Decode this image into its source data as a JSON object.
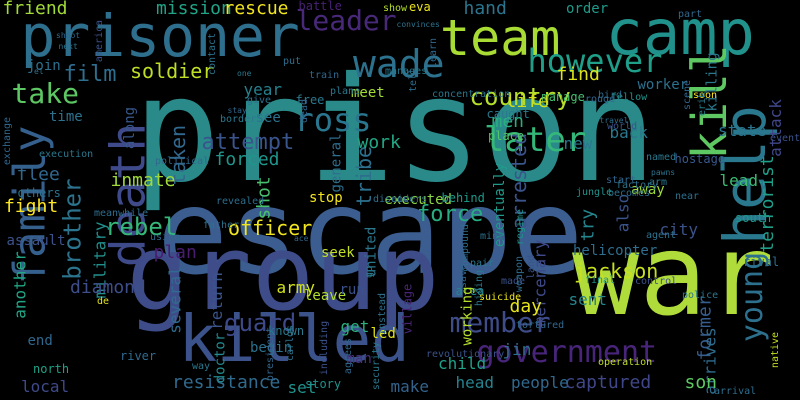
{
  "words": [
    {
      "t": "prison",
      "c": "#2a8a8a"
    },
    {
      "t": "escape",
      "c": "#3b5d8f"
    },
    {
      "t": "war",
      "c": "#b0dc3b"
    },
    {
      "t": "group",
      "c": "#3e4d8a"
    },
    {
      "t": "prisoner",
      "c": "#2e6f8e"
    },
    {
      "t": "camp",
      "c": "#21918c"
    },
    {
      "t": "team",
      "c": "#a8db34"
    },
    {
      "t": "death",
      "c": "#3e4a89"
    },
    {
      "t": "family",
      "c": "#35608d"
    },
    {
      "t": "killed",
      "c": "#3b528b"
    },
    {
      "t": "kill",
      "c": "#5ec962"
    },
    {
      "t": "help",
      "c": "#2a788e"
    },
    {
      "t": "government",
      "c": "#48257a"
    },
    {
      "t": "young",
      "c": "#2d708e"
    },
    {
      "t": "member",
      "c": "#3e4c8a"
    },
    {
      "t": "wade",
      "c": "#2c728e"
    },
    {
      "t": "later",
      "c": "#35b779"
    },
    {
      "t": "however",
      "c": "#1f9e89"
    },
    {
      "t": "leader",
      "c": "#482878"
    },
    {
      "t": "country",
      "c": "#b5de2b"
    },
    {
      "t": "ross",
      "c": "#2a768e"
    },
    {
      "t": "take",
      "c": "#5dc863"
    },
    {
      "t": "jackson",
      "c": "#c8e020"
    },
    {
      "t": "force",
      "c": "#27ad81"
    },
    {
      "t": "guard",
      "c": "#3e4989"
    },
    {
      "t": "brother",
      "c": "#2c738e"
    },
    {
      "t": "rebel",
      "c": "#35b779"
    },
    {
      "t": "attempt",
      "c": "#3a548c"
    },
    {
      "t": "taken",
      "c": "#31688e"
    },
    {
      "t": "film",
      "c": "#2e6e8e"
    },
    {
      "t": "soldier",
      "c": "#bddf26"
    },
    {
      "t": "inmate",
      "c": "#9fda3a"
    },
    {
      "t": "resistance",
      "c": "#306a8e"
    },
    {
      "t": "captured",
      "c": "#3f4788"
    },
    {
      "t": "mission",
      "c": "#20a386"
    },
    {
      "t": "rescue",
      "c": "#f1e51d"
    },
    {
      "t": "friend",
      "c": "#a2da37"
    },
    {
      "t": "hand",
      "c": "#2b758e"
    },
    {
      "t": "battle",
      "c": "#482173"
    },
    {
      "t": "officer",
      "c": "#f1e51d"
    },
    {
      "t": "army",
      "c": "#d2e21b"
    },
    {
      "t": "military",
      "c": "#21908d"
    },
    {
      "t": "tribe",
      "c": "#2d708e"
    },
    {
      "t": "arrested",
      "c": "#3a548c"
    },
    {
      "t": "forced",
      "c": "#1f968b"
    },
    {
      "t": "eventually",
      "c": "#1f9a8a"
    },
    {
      "t": "fight",
      "c": "#fde725"
    },
    {
      "t": "plan",
      "c": "#481d6f"
    },
    {
      "t": "diamond",
      "c": "#3d4e8a"
    },
    {
      "t": "work",
      "c": "#22a785"
    },
    {
      "t": "general",
      "c": "#2e6e8e"
    },
    {
      "t": "united",
      "c": "#2a778e"
    },
    {
      "t": "men",
      "c": "#29af7f"
    },
    {
      "t": "find",
      "c": "#dde318"
    },
    {
      "t": "life",
      "c": "#d0e11c"
    },
    {
      "t": "new",
      "c": "#29798e"
    },
    {
      "t": "state",
      "c": "#2b748e"
    },
    {
      "t": "lead",
      "c": "#3dbc74"
    },
    {
      "t": "mercenary",
      "c": "#3e4a89"
    },
    {
      "t": "try",
      "c": "#24868e"
    },
    {
      "t": "also",
      "c": "#3a538b"
    },
    {
      "t": "city",
      "c": "#3b528b"
    },
    {
      "t": "sent",
      "c": "#25848e"
    },
    {
      "t": "day",
      "c": "#e7e419"
    },
    {
      "t": "former",
      "c": "#365d8d"
    },
    {
      "t": "arrives",
      "c": "#2f6c8e"
    },
    {
      "t": "son",
      "c": "#5ec962"
    },
    {
      "t": "people",
      "c": "#31688e"
    },
    {
      "t": "terrorist",
      "c": "#1f9e89"
    },
    {
      "t": "attack",
      "c": "#3f4788"
    },
    {
      "t": "killing",
      "c": "#2a788e"
    },
    {
      "t": "worker",
      "c": "#2c728e"
    },
    {
      "t": "head",
      "c": "#26828e"
    },
    {
      "t": "child",
      "c": "#1fa088"
    },
    {
      "t": "make",
      "c": "#33638d"
    },
    {
      "t": "leave",
      "c": "#b0dd2f"
    },
    {
      "t": "local",
      "c": "#3e4a89"
    },
    {
      "t": "jin",
      "c": "#2e6e8e"
    },
    {
      "t": "set",
      "c": "#20928c"
    },
    {
      "t": "return",
      "c": "#3a548c"
    },
    {
      "t": "doctor",
      "c": "#23898e"
    },
    {
      "t": "begin",
      "c": "#2c728e"
    },
    {
      "t": "get",
      "c": "#2ab07f"
    },
    {
      "t": "led",
      "c": "#e2e418"
    },
    {
      "t": "shot",
      "c": "#48c16e"
    },
    {
      "t": "several",
      "c": "#2f6b8e"
    },
    {
      "t": "another",
      "c": "#21a585"
    },
    {
      "t": "flee",
      "c": "#31678e"
    },
    {
      "t": "time",
      "c": "#2c728e"
    },
    {
      "t": "join",
      "c": "#2d718e"
    },
    {
      "t": "year",
      "c": "#26818e"
    },
    {
      "t": "see",
      "c": "#2c728e"
    },
    {
      "t": "meet",
      "c": "#a5db36"
    },
    {
      "t": "back",
      "c": "#2a788e"
    },
    {
      "t": "along",
      "c": "#38588c"
    },
    {
      "t": "stop",
      "c": "#f4e61e"
    },
    {
      "t": "seek",
      "c": "#c2df23"
    },
    {
      "t": "run",
      "c": "#3b518b"
    },
    {
      "t": "end",
      "c": "#31678e"
    },
    {
      "t": "north",
      "c": "#1fa187"
    },
    {
      "t": "story",
      "c": "#21918c"
    },
    {
      "t": "man",
      "c": "#46327e"
    },
    {
      "t": "area",
      "c": "#25858e"
    },
    {
      "t": "working",
      "c": "#b5de2b"
    },
    {
      "t": "village",
      "c": "#482475"
    },
    {
      "t": "executed",
      "c": "#8bd646"
    },
    {
      "t": "behind",
      "c": "#1e9b8a"
    },
    {
      "t": "eva",
      "c": "#ece51b"
    },
    {
      "t": "show",
      "c": "#b4de2c"
    },
    {
      "t": "order",
      "c": "#1f9a8a"
    },
    {
      "t": "place",
      "c": "#52c569"
    },
    {
      "t": "caught",
      "c": "#2a788e"
    },
    {
      "t": "manage",
      "c": "#46c06f"
    },
    {
      "t": "bird",
      "c": "#2f6b8e"
    },
    {
      "t": "fellow",
      "c": "#20928c"
    },
    {
      "t": "concentration",
      "c": "#2a778e"
    },
    {
      "t": "part",
      "c": "#31678e"
    },
    {
      "t": "world",
      "c": "#3b528b"
    },
    {
      "t": "named",
      "c": "#2a788e"
    },
    {
      "t": "away",
      "c": "#a0da39"
    },
    {
      "t": "hostage",
      "c": "#38588c"
    },
    {
      "t": "soon",
      "c": "#fde725"
    },
    {
      "t": "scene",
      "c": "#31678e"
    },
    {
      "t": "erik",
      "c": "#277e8e"
    },
    {
      "t": "event",
      "c": "#3b528b"
    },
    {
      "t": "near",
      "c": "#2d718e"
    },
    {
      "t": "south",
      "c": "#1f968b"
    },
    {
      "t": "rival",
      "c": "#2e6e8e"
    },
    {
      "t": "native",
      "c": "#c5df21"
    },
    {
      "t": "control",
      "c": "#3b528b"
    },
    {
      "t": "police",
      "c": "#2a788e"
    },
    {
      "t": "arrival",
      "c": "#2e6e8e"
    },
    {
      "t": "revolutionary",
      "c": "#3b528b"
    },
    {
      "t": "suicide",
      "c": "#ece51b"
    },
    {
      "t": "final",
      "c": "#21918c"
    },
    {
      "t": "operation",
      "c": "#bddf26"
    },
    {
      "t": "tortured",
      "c": "#31678e"
    },
    {
      "t": "pair",
      "c": "#2a788e"
    },
    {
      "t": "made",
      "c": "#3b528b"
    },
    {
      "t": "weapon",
      "c": "#2f6b8e"
    },
    {
      "t": "jungle",
      "c": "#21918c"
    },
    {
      "t": "helicopter",
      "c": "#2e6e8e"
    },
    {
      "t": "agent",
      "c": "#2c728e"
    },
    {
      "t": "mine",
      "c": "#2d718e"
    },
    {
      "t": "regime",
      "c": "#1f968b"
    },
    {
      "t": "land",
      "c": "#3b528b"
    },
    {
      "t": "hiding",
      "c": "#2a788e"
    },
    {
      "t": "save",
      "c": "#31678e"
    },
    {
      "t": "compound",
      "c": "#2e6e8e"
    },
    {
      "t": "instead",
      "c": "#2d718e"
    },
    {
      "t": "agrees",
      "c": "#31678e"
    },
    {
      "t": "security",
      "c": "#2a788e"
    },
    {
      "t": "including",
      "c": "#3b528b"
    },
    {
      "t": "carlos",
      "c": "#2c728e"
    },
    {
      "t": "known",
      "c": "#2a788e"
    },
    {
      "t": "president",
      "c": "#31678e"
    },
    {
      "t": "river",
      "c": "#2f6b8e"
    },
    {
      "t": "way",
      "c": "#2a788e"
    },
    {
      "t": "de",
      "c": "#e2e418"
    },
    {
      "t": "using",
      "c": "#31678e"
    },
    {
      "t": "meanwhile",
      "c": "#2e6e8e"
    },
    {
      "t": "assault",
      "c": "#3b528b"
    },
    {
      "t": "others",
      "c": "#2c728e"
    },
    {
      "t": "exchange",
      "c": "#31678e"
    },
    {
      "t": "execution",
      "c": "#2a788e"
    },
    {
      "t": "el",
      "c": "#2e6e8e"
    },
    {
      "t": "next",
      "c": "#2c728e"
    },
    {
      "t": "shoot",
      "c": "#31678e"
    },
    {
      "t": "america",
      "c": "#3b528b"
    },
    {
      "t": "one",
      "c": "#2a788e"
    },
    {
      "t": "stay",
      "c": "#31678e"
    },
    {
      "t": "give",
      "c": "#2c728e"
    },
    {
      "t": "border",
      "c": "#2a788e"
    },
    {
      "t": "political",
      "c": "#31678e"
    },
    {
      "t": "revealed",
      "c": "#2e6e8e"
    },
    {
      "t": "father",
      "c": "#2c728e"
    },
    {
      "t": "ace",
      "c": "#31678e"
    },
    {
      "t": "free",
      "c": "#2a788e"
    },
    {
      "t": "train",
      "c": "#31678e"
    },
    {
      "t": "put",
      "c": "#2e6e8e"
    },
    {
      "t": "contact",
      "c": "#2c728e"
    },
    {
      "t": "dead",
      "c": "#31678e"
    },
    {
      "t": "plane",
      "c": "#2a788e"
    },
    {
      "t": "tell",
      "c": "#2e6e8e"
    },
    {
      "t": "learn",
      "c": "#31678e"
    },
    {
      "t": "convinces",
      "c": "#2c728e"
    },
    {
      "t": "manages",
      "c": "#2a788e"
    },
    {
      "t": "rouge",
      "c": "#31678e"
    },
    {
      "t": "travel",
      "c": "#2e6e8e"
    },
    {
      "t": "pawns",
      "c": "#2c728e"
    },
    {
      "t": "arm",
      "c": "#2a788e"
    },
    {
      "t": "start",
      "c": "#31678e"
    },
    {
      "t": "becomes",
      "c": "#2e6e8e"
    },
    {
      "t": "factory",
      "c": "#2c728e"
    },
    {
      "t": "go",
      "c": "#2a788e"
    },
    {
      "t": "aid",
      "c": "#31678e"
    },
    {
      "t": "discovers",
      "c": "#2e6e8e"
    }
  ]
}
